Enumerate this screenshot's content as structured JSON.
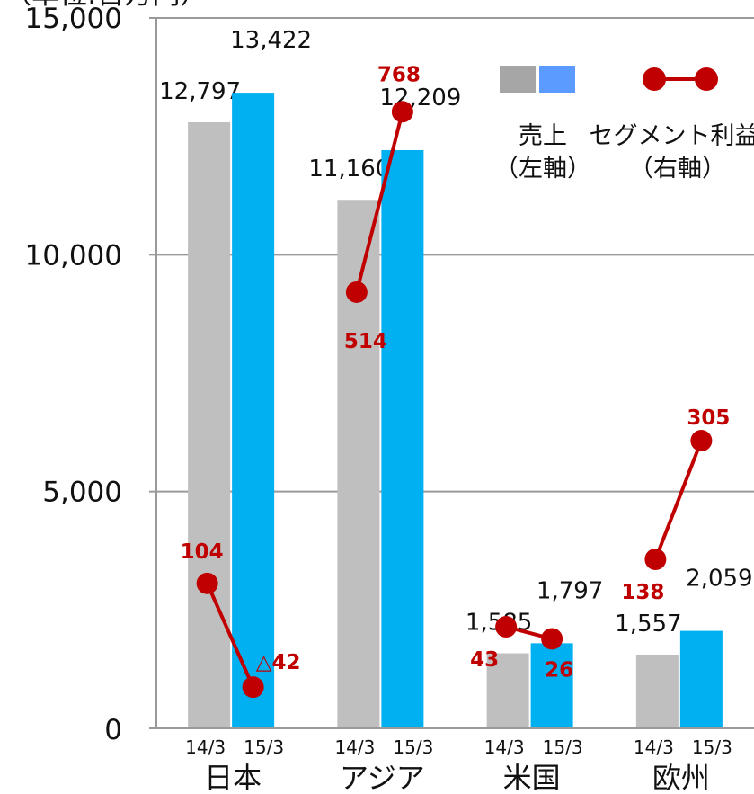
{
  "chart_data": {
    "type": "bar",
    "unit_label": "（単位:百万円）",
    "categories": [
      "日本",
      "アジア",
      "米国",
      "欧州"
    ],
    "periods": [
      "14/3",
      "15/3"
    ],
    "ylim": [
      0,
      15000
    ],
    "yticks": [
      0,
      5000,
      10000,
      15000
    ],
    "ytick_labels": [
      "0",
      "5,000",
      "10,000",
      "15,000"
    ],
    "y2lim": [
      -100,
      900
    ],
    "grid": true,
    "series": [
      {
        "name": "売上",
        "axis": "left",
        "values": [
          [
            12797,
            13422
          ],
          [
            11160,
            12209
          ],
          [
            1585,
            1797
          ],
          [
            1557,
            2059
          ]
        ],
        "labels": [
          [
            "12,797",
            "13,422"
          ],
          [
            "11,160",
            "12,209"
          ],
          [
            "1,585",
            "1,797"
          ],
          [
            "1,557",
            "2,059"
          ]
        ],
        "colors": [
          "#bfbfbf",
          "#00b0f0"
        ]
      },
      {
        "name": "セグメント利益",
        "axis": "right",
        "type": "line",
        "values": [
          [
            104,
            -42
          ],
          [
            514,
            768
          ],
          [
            43,
            26
          ],
          [
            138,
            305
          ]
        ],
        "labels": [
          [
            "104",
            "△42"
          ],
          [
            "514",
            "768"
          ],
          [
            "43",
            "26"
          ],
          [
            "138",
            "305"
          ]
        ],
        "color": "#c00000"
      }
    ],
    "legend": {
      "position": "top-right",
      "sales_name": "売上",
      "sales_axis": "（左軸）",
      "profit_name": "セグメント利益",
      "profit_axis": "（右軸）",
      "sales_swatch_colors": [
        "#a6a6a6",
        "#5b9bff"
      ]
    }
  }
}
